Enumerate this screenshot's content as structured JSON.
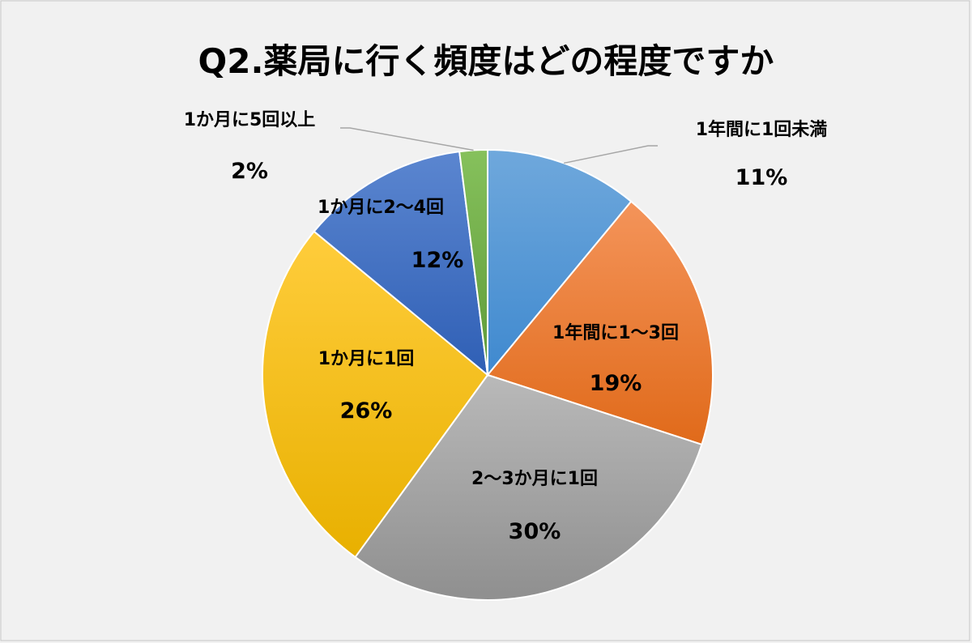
{
  "chart_data": {
    "type": "pie",
    "title": "Q2.薬局に行く頻度はどの程度ですか",
    "slices": [
      {
        "label": "1年間に1回未満",
        "value": 11,
        "value_label": "11%",
        "color": "#5b9bd5"
      },
      {
        "label": "1年間に1～3回",
        "value": 19,
        "value_label": "19%",
        "color": "#ed7d31"
      },
      {
        "label": "2～3か月に1回",
        "value": 30,
        "value_label": "30%",
        "color": "#a5a5a5"
      },
      {
        "label": "1か月に1回",
        "value": 26,
        "value_label": "26%",
        "color": "#ffc000"
      },
      {
        "label": "1か月に2～4回",
        "value": 12,
        "value_label": "12%",
        "color": "#4472c4"
      },
      {
        "label": "1か月に5回以上",
        "value": 2,
        "value_label": "2%",
        "color": "#70ad47"
      }
    ],
    "start_angle": "12 o'clock",
    "direction": "clockwise",
    "legend": "none"
  }
}
